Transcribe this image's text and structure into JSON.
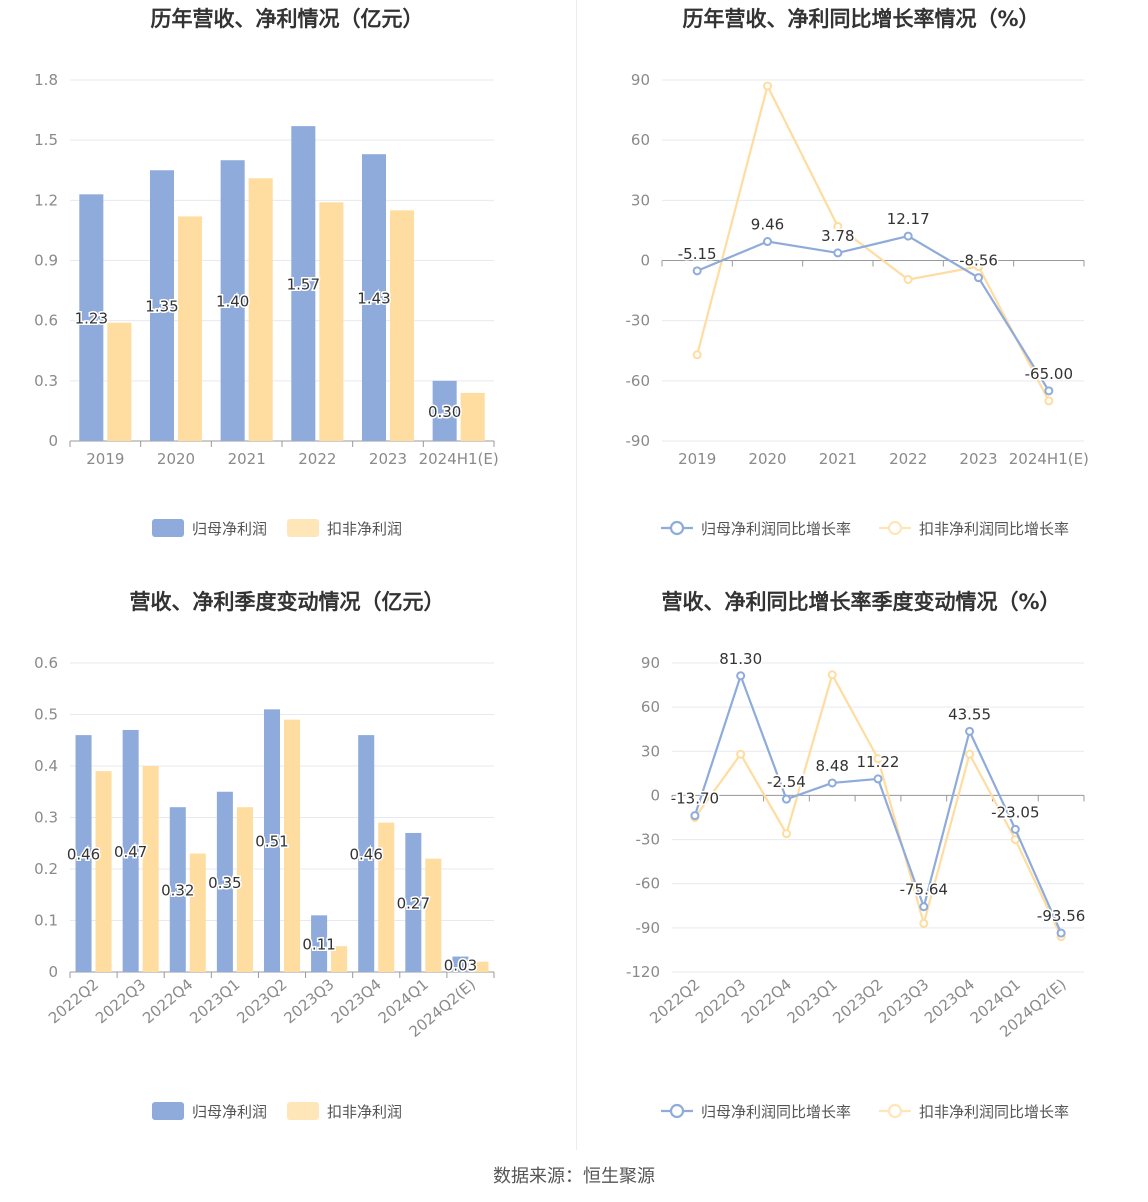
{
  "colors": {
    "primary": "#8eabdb",
    "secondary": "#ffdc9f",
    "secondary_light": "#ffe6b8",
    "line_primary": "#8eabdb",
    "line_secondary": "#ffdc9f"
  },
  "source_text": "数据来源：恒生聚源",
  "chart_data": [
    {
      "type": "bar",
      "title": "历年营收、净利情况（亿元）",
      "categories": [
        "2019",
        "2020",
        "2021",
        "2022",
        "2023",
        "2024H1(E)"
      ],
      "ylim": [
        0,
        1.8
      ],
      "yticks": [
        "0",
        "0.3",
        "0.6",
        "0.9",
        "1.2",
        "1.5",
        "1.8"
      ],
      "series": [
        {
          "name": "归母净利润",
          "values": [
            1.23,
            1.35,
            1.4,
            1.57,
            1.43,
            0.3
          ],
          "labels": [
            "1.23",
            "1.35",
            "1.40",
            "1.57",
            "1.43",
            "0.30"
          ]
        },
        {
          "name": "扣非净利润",
          "values": [
            0.59,
            1.12,
            1.31,
            1.19,
            1.15,
            0.24
          ]
        }
      ],
      "legend": "bottom"
    },
    {
      "type": "line",
      "title": "历年营收、净利同比增长率情况（%）",
      "categories": [
        "2019",
        "2020",
        "2021",
        "2022",
        "2023",
        "2024H1(E)"
      ],
      "ylim": [
        -90,
        90
      ],
      "yticks": [
        "-90",
        "-60",
        "-30",
        "0",
        "30",
        "60",
        "90"
      ],
      "series": [
        {
          "name": "归母净利润同比增长率",
          "values": [
            -5.15,
            9.46,
            3.78,
            12.17,
            -8.56,
            -65.0
          ],
          "labels": [
            "-5.15",
            "9.46",
            "3.78",
            "12.17",
            "-8.56",
            "-65.00"
          ]
        },
        {
          "name": "扣非净利润同比增长率",
          "values": [
            -47,
            87,
            17,
            -9.5,
            -3,
            -70
          ]
        }
      ],
      "legend": "bottom"
    },
    {
      "type": "bar",
      "title": "营收、净利季度变动情况（亿元）",
      "categories": [
        "2022Q2",
        "2022Q3",
        "2022Q4",
        "2023Q1",
        "2023Q2",
        "2023Q3",
        "2023Q4",
        "2024Q1",
        "2024Q2(E)"
      ],
      "ylim": [
        0,
        0.6
      ],
      "yticks": [
        "0",
        "0.1",
        "0.2",
        "0.3",
        "0.4",
        "0.5",
        "0.6"
      ],
      "series": [
        {
          "name": "归母净利润",
          "values": [
            0.46,
            0.47,
            0.32,
            0.35,
            0.51,
            0.11,
            0.46,
            0.27,
            0.03
          ],
          "labels": [
            "0.46",
            "0.47",
            "0.32",
            "0.35",
            "0.51",
            "0.11",
            "0.46",
            "0.27",
            "0.03"
          ]
        },
        {
          "name": "扣非净利润",
          "values": [
            0.39,
            0.4,
            0.23,
            0.32,
            0.49,
            0.05,
            0.29,
            0.22,
            0.02
          ]
        }
      ],
      "legend": "bottom"
    },
    {
      "type": "line",
      "title": "营收、净利同比增长率季度变动情况（%）",
      "categories": [
        "2022Q2",
        "2022Q3",
        "2022Q4",
        "2023Q1",
        "2023Q2",
        "2023Q3",
        "2023Q4",
        "2024Q1",
        "2024Q2(E)"
      ],
      "ylim": [
        -120,
        90
      ],
      "yticks": [
        "-120",
        "-90",
        "-60",
        "-30",
        "0",
        "30",
        "60",
        "90"
      ],
      "series": [
        {
          "name": "归母净利润同比增长率",
          "values": [
            -13.7,
            81.3,
            -2.54,
            8.48,
            11.22,
            -75.64,
            43.55,
            -23.05,
            -93.56
          ],
          "labels": [
            "-13.70",
            "81.30",
            "-2.54",
            "8.48",
            "11.22",
            "-75.64",
            "43.55",
            "-23.05",
            "-93.56"
          ]
        },
        {
          "name": "扣非净利润同比增长率",
          "values": [
            -15,
            28,
            -26,
            82,
            25,
            -87,
            28,
            -30,
            -96
          ]
        }
      ],
      "legend": "bottom"
    }
  ]
}
